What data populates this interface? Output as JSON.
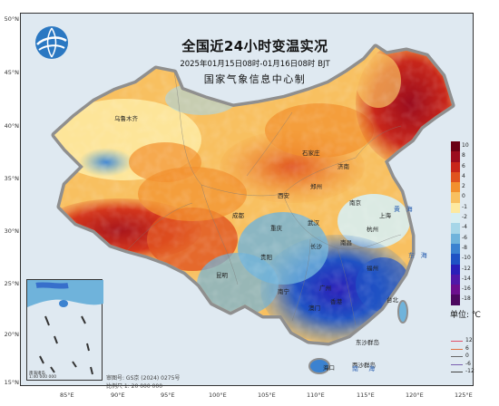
{
  "header": {
    "title": "全国近24小时变温实况",
    "period": "2025年01月15日08时-01月16日08时 BJT",
    "org": "国家气象信息中心制"
  },
  "axes": {
    "lat_labels": [
      "50°N",
      "45°N",
      "40°N",
      "35°N",
      "30°N",
      "25°N",
      "20°N",
      "15°N"
    ],
    "lon_labels": [
      "85°E",
      "90°E",
      "95°E",
      "100°E",
      "105°E",
      "110°E",
      "115°E",
      "120°E",
      "125°E"
    ]
  },
  "legend": {
    "unit": "单位: ℃",
    "items": [
      {
        "label": "10",
        "color": "#6b0014"
      },
      {
        "label": "8",
        "color": "#9b0c1e"
      },
      {
        "label": "6",
        "color": "#c8261a"
      },
      {
        "label": "4",
        "color": "#e0531f"
      },
      {
        "label": "2",
        "color": "#f2902e"
      },
      {
        "label": "0",
        "color": "#f8c060"
      },
      {
        "label": "-1",
        "color": "#fde9a0"
      },
      {
        "label": "-2",
        "color": "#d7eef2"
      },
      {
        "label": "-4",
        "color": "#a6d6e8"
      },
      {
        "label": "-6",
        "color": "#6fb3db"
      },
      {
        "label": "-8",
        "color": "#3b82d0"
      },
      {
        "label": "-10",
        "color": "#1f52c4"
      },
      {
        "label": "-12",
        "color": "#2a1fb8"
      },
      {
        "label": "-14",
        "color": "#5018a8"
      },
      {
        "label": "-16",
        "color": "#6c0f8e"
      },
      {
        "label": "-18",
        "color": "#4c0860"
      }
    ],
    "isolines": [
      {
        "label": "12",
        "color": "#e0506a"
      },
      {
        "label": "6",
        "color": "#e07040"
      },
      {
        "label": "0",
        "color": "#666666"
      },
      {
        "label": "-6",
        "color": "#7a5fb0"
      },
      {
        "label": "-12",
        "color": "#444444"
      }
    ]
  },
  "notes": {
    "map_code": "审图号: GS京 (2024) 0275号",
    "scale": "比例尺 1: 20 000 000",
    "inset_scale": "1:40 000 000",
    "inset_title": "南海诸岛"
  },
  "places": {
    "wulumuqi": "乌鲁木齐",
    "shijiazhuang": "石家庄",
    "jinan": "济南",
    "zhengzhou": "郑州",
    "xian": "西安",
    "wuhan": "武汉",
    "nanjing": "南京",
    "shanghai": "上海",
    "hangzhou": "杭州",
    "chongqing": "重庆",
    "chengdu": "成都",
    "guiyang": "贵阳",
    "kunming": "昆明",
    "changsha": "长沙",
    "nanchang": "南昌",
    "fuzhou": "福州",
    "taibei": "台北",
    "guangzhou": "广州",
    "nanning": "南宁",
    "hongkong": "香港",
    "macao": "澳门",
    "haikou": "海口",
    "dongshaqundao": "东沙群岛",
    "xishaqundao": "西沙群岛"
  },
  "seas": {
    "huanghai_a": "黄",
    "huanghai_b": "海",
    "donghai_a": "东",
    "donghai_b": "海",
    "nanhai_a": "南",
    "nanhai_b": "海"
  },
  "colors": {
    "frame": "#333333",
    "ocean": "#dfe9f1",
    "warm": "#e0531f",
    "cold": "#1f52c4"
  }
}
